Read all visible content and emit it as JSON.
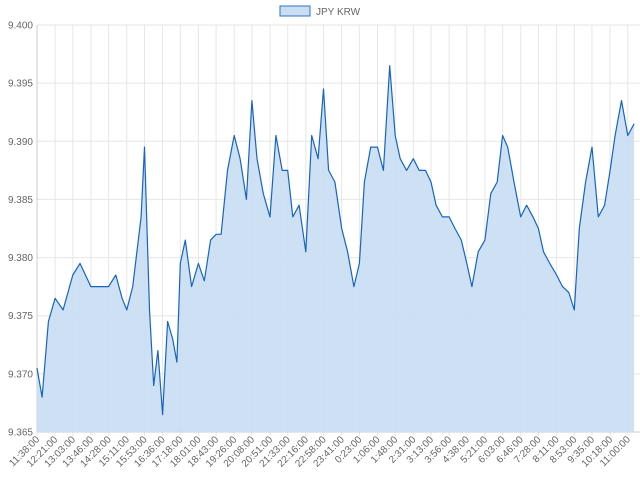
{
  "chart_data": {
    "type": "area",
    "legend": {
      "position": "top",
      "label": "JPY KRW"
    },
    "colors": {
      "line": "#1565C0",
      "fill": "#C9DDF3",
      "legend_border": "#2F73C3",
      "grid": "#E6E6E6",
      "axis": "#CCCCCC",
      "tick_text": "#666666"
    },
    "ylim": [
      9.365,
      9.4
    ],
    "yticks": [
      "9.365",
      "9.370",
      "9.375",
      "9.380",
      "9.385",
      "9.390",
      "9.395",
      "9.400"
    ],
    "yticks_values": [
      9.365,
      9.37,
      9.375,
      9.38,
      9.385,
      9.39,
      9.395,
      9.4
    ],
    "xticks": [
      "11:38:00",
      "12:21:00",
      "13:03:00",
      "13:46:00",
      "14:28:00",
      "15:11:00",
      "15:53:00",
      "16:36:00",
      "17:18:00",
      "18:01:00",
      "18:43:00",
      "19:26:00",
      "20:08:00",
      "20:51:00",
      "21:33:00",
      "22:16:00",
      "22:58:00",
      "23:41:00",
      "0:23:00",
      "1:06:00",
      "1:48:00",
      "2:31:00",
      "3:13:00",
      "3:56:00",
      "4:38:00",
      "5:21:00",
      "6:03:00",
      "6:46:00",
      "7:28:00",
      "8:11:00",
      "8:53:00",
      "9:35:00",
      "10:18:00",
      "11:00:00"
    ],
    "grid": true,
    "series": [
      {
        "name": "JPY KRW",
        "x": [
          "11:38:00",
          "11:50:00",
          "12:05:00",
          "12:21:00",
          "12:40:00",
          "13:03:00",
          "13:20:00",
          "13:46:00",
          "14:05:00",
          "14:28:00",
          "14:45:00",
          "15:00:00",
          "15:11:00",
          "15:25:00",
          "15:35:00",
          "15:45:00",
          "15:53:00",
          "16:05:00",
          "16:15:00",
          "16:25:00",
          "16:36:00",
          "16:48:00",
          "17:00:00",
          "17:10:00",
          "17:18:00",
          "17:30:00",
          "17:45:00",
          "18:01:00",
          "18:15:00",
          "18:30:00",
          "18:43:00",
          "18:55:00",
          "19:10:00",
          "19:26:00",
          "19:40:00",
          "19:55:00",
          "20:08:00",
          "20:20:00",
          "20:35:00",
          "20:51:00",
          "21:05:00",
          "21:20:00",
          "21:33:00",
          "21:45:00",
          "22:00:00",
          "22:16:00",
          "22:30:00",
          "22:45:00",
          "22:58:00",
          "23:10:00",
          "23:25:00",
          "23:41:00",
          "23:55:00",
          "0:10:00",
          "0:23:00",
          "0:35:00",
          "0:50:00",
          "1:06:00",
          "1:20:00",
          "1:35:00",
          "1:48:00",
          "2:00:00",
          "2:15:00",
          "2:31:00",
          "2:45:00",
          "3:00:00",
          "3:13:00",
          "3:25:00",
          "3:40:00",
          "3:56:00",
          "4:10:00",
          "4:25:00",
          "4:38:00",
          "4:50:00",
          "5:05:00",
          "5:21:00",
          "5:35:00",
          "5:50:00",
          "6:03:00",
          "6:15:00",
          "6:30:00",
          "6:46:00",
          "7:00:00",
          "7:15:00",
          "7:28:00",
          "7:40:00",
          "7:55:00",
          "8:11:00",
          "8:25:00",
          "8:40:00",
          "8:53:00",
          "9:05:00",
          "9:20:00",
          "9:35:00",
          "9:50:00",
          "10:05:00",
          "10:18:00",
          "10:30:00",
          "10:45:00",
          "11:00:00",
          "11:15:00"
        ],
        "values": [
          9.3705,
          9.368,
          9.3745,
          9.3765,
          9.3755,
          9.3785,
          9.3795,
          9.3775,
          9.3775,
          9.3775,
          9.3785,
          9.3765,
          9.3755,
          9.3775,
          9.3805,
          9.3835,
          9.3895,
          9.3755,
          9.369,
          9.372,
          9.3665,
          9.3745,
          9.373,
          9.371,
          9.3795,
          9.3815,
          9.3775,
          9.3795,
          9.378,
          9.3815,
          9.382,
          9.382,
          9.3875,
          9.3905,
          9.3885,
          9.385,
          9.3935,
          9.3885,
          9.3855,
          9.3835,
          9.3905,
          9.3875,
          9.3875,
          9.3835,
          9.3845,
          9.3805,
          9.3905,
          9.3885,
          9.3945,
          9.3875,
          9.3865,
          9.3825,
          9.3805,
          9.3775,
          9.3795,
          9.3865,
          9.3895,
          9.3895,
          9.3875,
          9.3965,
          9.3905,
          9.3885,
          9.3875,
          9.3885,
          9.3875,
          9.3875,
          9.3865,
          9.3845,
          9.3835,
          9.3835,
          9.3825,
          9.3815,
          9.3795,
          9.3775,
          9.3805,
          9.3815,
          9.3855,
          9.3865,
          9.3905,
          9.3895,
          9.3865,
          9.3835,
          9.3845,
          9.3835,
          9.3825,
          9.3805,
          9.3795,
          9.3785,
          9.3775,
          9.377,
          9.3755,
          9.3825,
          9.3865,
          9.3895,
          9.3835,
          9.3845,
          9.3875,
          9.3905,
          9.3935,
          9.3905,
          9.3915
        ]
      }
    ]
  }
}
